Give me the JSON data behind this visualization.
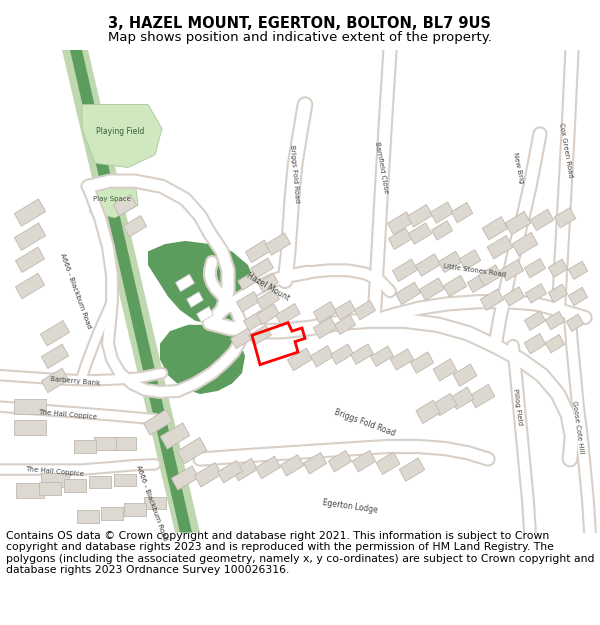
{
  "title_line1": "3, HAZEL MOUNT, EGERTON, BOLTON, BL7 9US",
  "title_line2": "Map shows position and indicative extent of the property.",
  "footer_text": "Contains OS data © Crown copyright and database right 2021. This information is subject to Crown copyright and database rights 2023 and is reproduced with the permission of HM Land Registry. The polygons (including the associated geometry, namely x, y co-ordinates) are subject to Crown copyright and database rights 2023 Ordnance Survey 100026316.",
  "map_bg": "#f0ece6",
  "road_white": "#ffffff",
  "road_gray": "#d8d0c8",
  "bld_fill": "#ddd8d0",
  "bld_edge": "#c0b8b0",
  "green_dark": "#5c9c5c",
  "green_light": "#c0d8b0",
  "playing_fill": "#d0e8c0",
  "playing_edge": "#a8c898",
  "red_col": "#ff0000",
  "title_fs": 10.5,
  "sub_fs": 9.5,
  "foot_fs": 7.8
}
